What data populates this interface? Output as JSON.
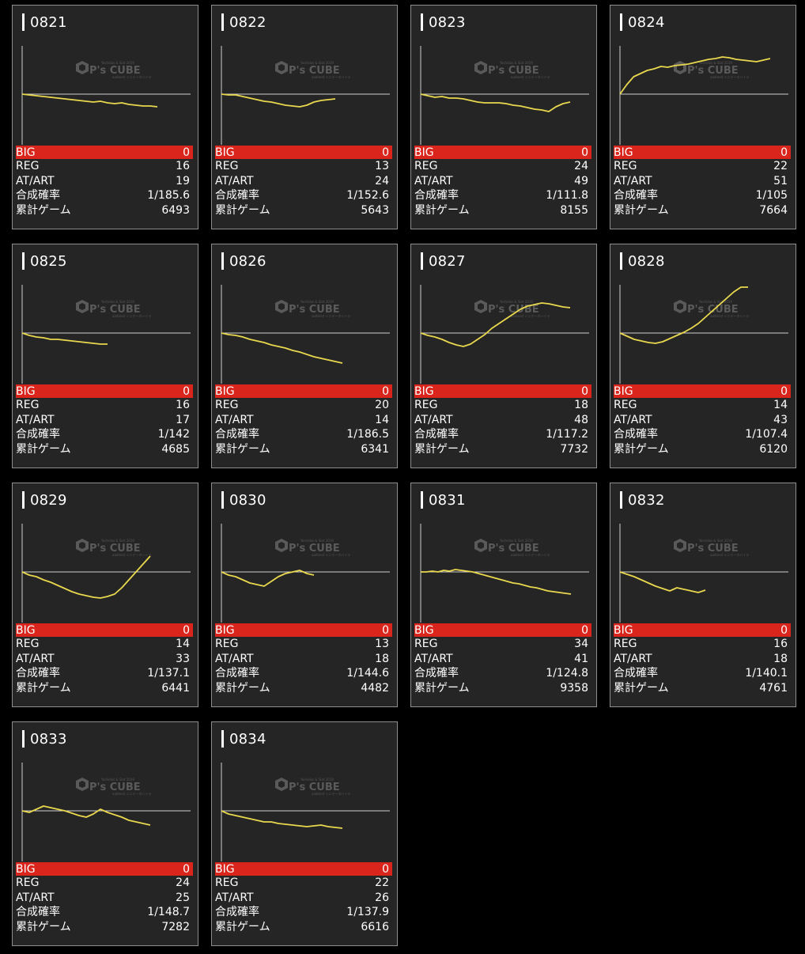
{
  "labels": {
    "big": "BIG",
    "reg": "REG",
    "atart": "AT/ART",
    "rate": "合成確率",
    "games": "累計ゲーム"
  },
  "watermark": {
    "text": "P's CUBE",
    "top_text": "Yoshidas & Slot 2019",
    "sub_text": "aadiend ミニデータハイラ"
  },
  "colors": {
    "line": "#e9d84e",
    "big_bg": "#d9251b",
    "card_bg": "#252525",
    "page_bg": "#000000"
  },
  "machines": [
    {
      "id": "0821",
      "big": "0",
      "reg": "16",
      "atart": "19",
      "rate": "1/185.6",
      "games": "6493",
      "trend": [
        0,
        -1,
        -2,
        -3,
        -4,
        -5,
        -6,
        -7,
        -8,
        -9,
        -10,
        -9,
        -11,
        -12,
        -11,
        -13,
        -14,
        -15,
        -15,
        -16
      ]
    },
    {
      "id": "0822",
      "big": "0",
      "reg": "13",
      "atart": "24",
      "rate": "1/152.6",
      "games": "5643",
      "trend": [
        0,
        -1,
        -1,
        -3,
        -5,
        -7,
        -9,
        -10,
        -12,
        -14,
        -15,
        -16,
        -14,
        -10,
        -8,
        -7,
        -6
      ]
    },
    {
      "id": "0823",
      "big": "0",
      "reg": "24",
      "atart": "49",
      "rate": "1/111.8",
      "games": "8155",
      "trend": [
        0,
        -2,
        -4,
        -3,
        -5,
        -5,
        -6,
        -8,
        -10,
        -11,
        -11,
        -11,
        -12,
        -14,
        -15,
        -17,
        -19,
        -20,
        -22,
        -16,
        -12,
        -10
      ]
    },
    {
      "id": "0824",
      "big": "0",
      "reg": "22",
      "atart": "51",
      "rate": "1/105",
      "games": "7664",
      "trend": [
        0,
        12,
        22,
        26,
        30,
        32,
        35,
        34,
        36,
        37,
        38,
        40,
        42,
        44,
        45,
        47,
        46,
        44,
        43,
        42,
        41,
        43,
        45
      ]
    },
    {
      "id": "0825",
      "big": "0",
      "reg": "16",
      "atart": "17",
      "rate": "1/142",
      "games": "4685",
      "trend": [
        0,
        -3,
        -5,
        -6,
        -8,
        -8,
        -9,
        -10,
        -11,
        -12,
        -13,
        -14,
        -14
      ]
    },
    {
      "id": "0826",
      "big": "0",
      "reg": "20",
      "atart": "14",
      "rate": "1/186.5",
      "games": "6341",
      "trend": [
        0,
        -2,
        -3,
        -5,
        -8,
        -10,
        -12,
        -15,
        -17,
        -19,
        -22,
        -24,
        -27,
        -30,
        -32,
        -34,
        -36,
        -38
      ]
    },
    {
      "id": "0827",
      "big": "0",
      "reg": "18",
      "atart": "48",
      "rate": "1/117.2",
      "games": "7732",
      "trend": [
        0,
        -3,
        -5,
        -8,
        -12,
        -15,
        -17,
        -14,
        -8,
        -2,
        6,
        12,
        18,
        24,
        30,
        34,
        36,
        38,
        37,
        35,
        33,
        32
      ]
    },
    {
      "id": "0828",
      "big": "0",
      "reg": "14",
      "atart": "43",
      "rate": "1/107.4",
      "games": "6120",
      "trend": [
        0,
        -4,
        -8,
        -10,
        -12,
        -13,
        -11,
        -7,
        -3,
        1,
        6,
        12,
        20,
        28,
        36,
        44,
        52,
        58,
        58
      ]
    },
    {
      "id": "0829",
      "big": "0",
      "reg": "14",
      "atart": "33",
      "rate": "1/137.1",
      "games": "6441",
      "trend": [
        0,
        -4,
        -6,
        -10,
        -13,
        -17,
        -21,
        -25,
        -28,
        -30,
        -32,
        -33,
        -31,
        -28,
        -20,
        -10,
        0,
        10,
        20
      ]
    },
    {
      "id": "0830",
      "big": "0",
      "reg": "13",
      "atart": "18",
      "rate": "1/144.6",
      "games": "4482",
      "trend": [
        0,
        -4,
        -6,
        -10,
        -14,
        -16,
        -18,
        -12,
        -6,
        -2,
        0,
        2,
        -2,
        -4
      ]
    },
    {
      "id": "0831",
      "big": "0",
      "reg": "34",
      "atart": "41",
      "rate": "1/124.8",
      "games": "9358",
      "trend": [
        0,
        0,
        1,
        0,
        2,
        1,
        3,
        2,
        1,
        0,
        -2,
        -4,
        -6,
        -8,
        -10,
        -12,
        -14,
        -15,
        -17,
        -19,
        -20,
        -22,
        -24,
        -25,
        -26,
        -27,
        -28
      ]
    },
    {
      "id": "0832",
      "big": "0",
      "reg": "16",
      "atart": "18",
      "rate": "1/140.1",
      "games": "4761",
      "trend": [
        0,
        -3,
        -6,
        -10,
        -14,
        -18,
        -21,
        -24,
        -20,
        -22,
        -24,
        -26,
        -23
      ]
    },
    {
      "id": "0833",
      "big": "0",
      "reg": "24",
      "atart": "25",
      "rate": "1/148.7",
      "games": "7282",
      "trend": [
        0,
        -2,
        2,
        6,
        4,
        2,
        0,
        -3,
        -6,
        -8,
        -4,
        2,
        -2,
        -5,
        -8,
        -12,
        -14,
        -16,
        -18
      ]
    },
    {
      "id": "0834",
      "big": "0",
      "reg": "22",
      "atart": "26",
      "rate": "1/137.9",
      "games": "6616",
      "trend": [
        0,
        -4,
        -6,
        -8,
        -10,
        -12,
        -14,
        -14,
        -16,
        -17,
        -18,
        -19,
        -20,
        -19,
        -18,
        -20,
        -21,
        -22
      ]
    }
  ]
}
